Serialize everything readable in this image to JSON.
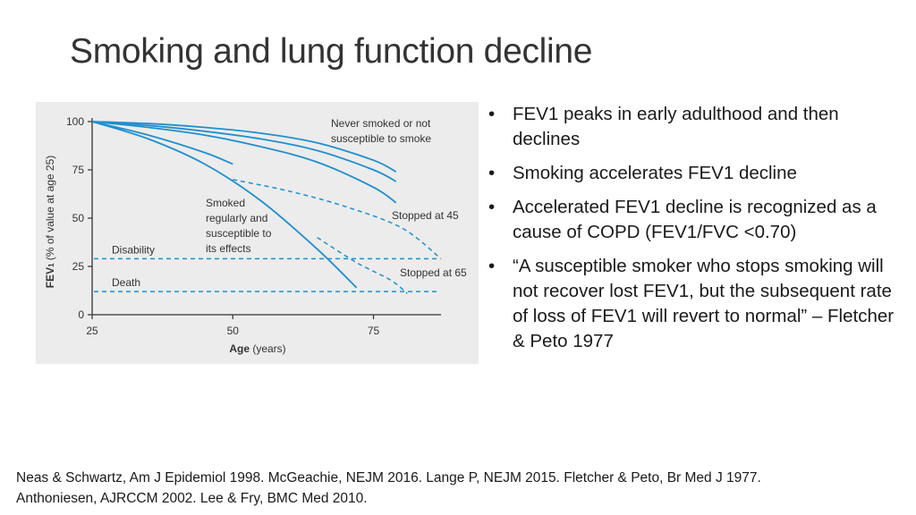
{
  "slide": {
    "title": "Smoking and lung function decline",
    "bullets": [
      "FEV1 peaks in early adulthood and then declines",
      "Smoking accelerates FEV1 decline",
      "Accelerated FEV1 decline is recognized as a cause of COPD (FEV1/FVC <0.70)",
      "“A susceptible smoker who stops smoking will not recover lost FEV1, but the subsequent rate of loss of FEV1 will revert to normal” – Fletcher & Peto 1977"
    ],
    "bullet_glyph": "•",
    "references": [
      "Neas & Schwartz, Am J Epidemiol 1998. McGeachie, NEJM 2016. Lange P, NEJM 2015.   Fletcher & Peto, Br Med J 1977.",
      "Anthoniesen, AJRCCM 2002. Lee & Fry, BMC Med 2010."
    ]
  },
  "colors": {
    "line": "#1f8fce",
    "axis": "#333333",
    "panel": "#ececec"
  },
  "chart_data": {
    "type": "line",
    "xlabel_main": "Age",
    "xlabel_unit": "(years)",
    "ylabel_main": "FEV",
    "ylabel_sub": "1",
    "ylabel_rest": " (% of value at age 25)",
    "xlim": [
      25,
      87
    ],
    "ylim": [
      0,
      100
    ],
    "xticks": [
      25,
      50,
      75
    ],
    "yticks": [
      0,
      25,
      50,
      75,
      100
    ],
    "grid": false,
    "series": [
      {
        "style": "solid",
        "x": [
          25,
          35,
          45,
          55,
          65,
          75,
          79
        ],
        "y": [
          100,
          99,
          97,
          94,
          89,
          80,
          74
        ]
      },
      {
        "style": "solid",
        "x": [
          25,
          35,
          45,
          55,
          65,
          75,
          79
        ],
        "y": [
          100,
          98,
          95,
          91,
          85,
          75,
          69
        ]
      },
      {
        "style": "solid",
        "x": [
          25,
          35,
          45,
          55,
          65,
          75,
          79
        ],
        "y": [
          100,
          97,
          93,
          87,
          79,
          66,
          58
        ]
      },
      {
        "style": "solid",
        "x": [
          25,
          35,
          45,
          55,
          65,
          72
        ],
        "y": [
          100,
          91,
          78,
          59,
          34,
          14
        ]
      },
      {
        "style": "solid",
        "x": [
          25,
          35,
          45,
          50
        ],
        "y": [
          100,
          93,
          84,
          78
        ]
      },
      {
        "style": "dashed",
        "x": [
          50,
          60,
          70,
          80,
          87
        ],
        "y": [
          70,
          64,
          56,
          45,
          29
        ]
      },
      {
        "style": "dashed",
        "x": [
          65,
          72,
          78,
          81
        ],
        "y": [
          40,
          27,
          18,
          11
        ]
      }
    ],
    "reference_lines": [
      {
        "label": "Disability",
        "y": 29
      },
      {
        "label": "Death",
        "y": 12
      }
    ],
    "annotations": [
      {
        "lines": [
          "Never smoked or not",
          "susceptible to smoke"
        ]
      },
      {
        "lines": [
          "Smoked",
          "regularly and",
          "susceptible to",
          "its effects"
        ]
      },
      {
        "lines": [
          "Stopped at 45"
        ]
      },
      {
        "lines": [
          "Stopped at 65"
        ]
      }
    ]
  }
}
